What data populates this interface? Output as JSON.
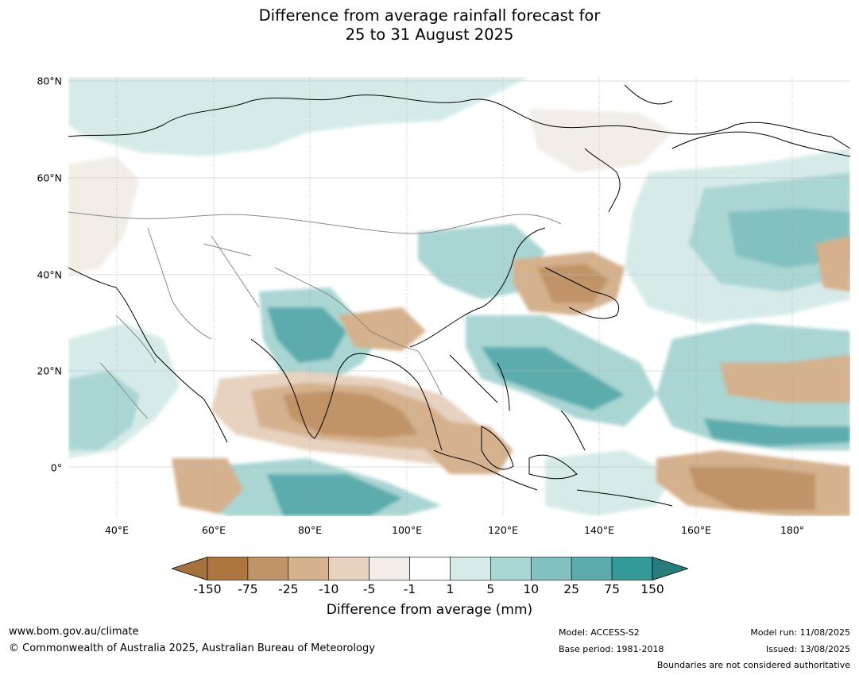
{
  "title": {
    "line1": "Difference from average rainfall forecast for",
    "line2": "25 to 31 August 2025"
  },
  "map": {
    "lat_labels": [
      "80°N",
      "60°N",
      "40°N",
      "20°N",
      "0°"
    ],
    "lon_labels": [
      "40°E",
      "60°E",
      "80°E",
      "100°E",
      "120°E",
      "140°E",
      "160°E",
      "180°"
    ],
    "region": "Asia and western Pacific",
    "lon_range": [
      30,
      192
    ],
    "lat_range": [
      -10,
      81
    ]
  },
  "colorbar": {
    "ticks": [
      "-150",
      "-75",
      "-25",
      "-10",
      "-5",
      "-1",
      "1",
      "5",
      "10",
      "25",
      "75",
      "150"
    ],
    "colors": [
      "#a5723d",
      "#ad7641",
      "#c19467",
      "#d5b18d",
      "#e6d2bf",
      "#f2ede6",
      "#ffffff",
      "#d6ebe9",
      "#a9d5d3",
      "#83c1c0",
      "#5cacad",
      "#349a98",
      "#287d7c"
    ],
    "label": "Difference from average (mm)"
  },
  "footer": {
    "website": "www.bom.gov.au/climate",
    "copyright": "© Commonwealth of Australia 2025, Australian Bureau of Meteorology",
    "model": "Model: ACCESS-S2",
    "base_period": "Base period: 1981-2018",
    "model_run": "Model run: 11/08/2025",
    "issued": "Issued: 13/08/2025",
    "disclaimer": "Boundaries are not considered authoritative"
  }
}
